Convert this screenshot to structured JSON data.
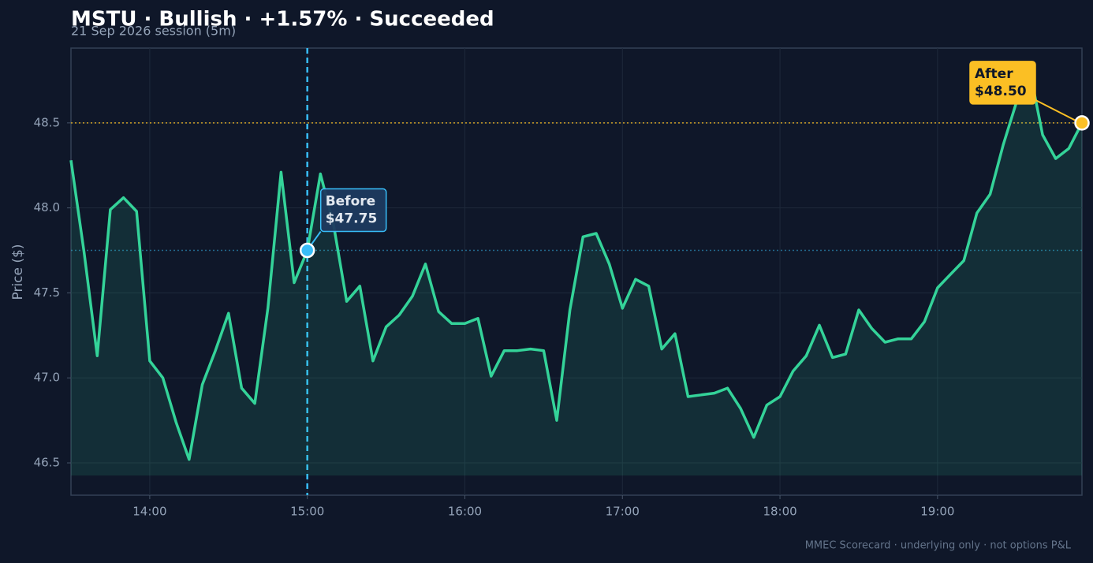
{
  "chart_data": {
    "type": "line",
    "title": "MSTU · Bullish · +1.57% · Succeeded",
    "subtitle": "21 Sep 2026 session (5m)",
    "ylabel": "Price ($)",
    "footer": "MMEC Scorecard · underlying only · not options P&L",
    "color": "#34d399",
    "grid": true,
    "x": [
      "13:30",
      "13:35",
      "13:40",
      "13:45",
      "13:50",
      "13:55",
      "14:00",
      "14:05",
      "14:10",
      "14:15",
      "14:20",
      "14:25",
      "14:30",
      "14:35",
      "14:40",
      "14:45",
      "14:50",
      "14:55",
      "15:00",
      "15:05",
      "15:10",
      "15:15",
      "15:20",
      "15:25",
      "15:30",
      "15:35",
      "15:40",
      "15:45",
      "15:50",
      "15:55",
      "16:00",
      "16:05",
      "16:10",
      "16:15",
      "16:20",
      "16:25",
      "16:30",
      "16:35",
      "16:40",
      "16:45",
      "16:50",
      "16:55",
      "17:00",
      "17:05",
      "17:10",
      "17:15",
      "17:20",
      "17:25",
      "17:30",
      "17:35",
      "17:40",
      "17:45",
      "17:50",
      "17:55",
      "18:00",
      "18:05",
      "18:10",
      "18:15",
      "18:20",
      "18:25",
      "18:30",
      "18:35",
      "18:40",
      "18:45",
      "18:50",
      "18:55",
      "19:00",
      "19:05",
      "19:10",
      "19:15",
      "19:20",
      "19:25",
      "19:30",
      "19:35",
      "19:40",
      "19:45",
      "19:50",
      "19:55"
    ],
    "values": [
      48.28,
      47.74,
      47.13,
      47.99,
      48.06,
      47.98,
      47.1,
      47.0,
      46.74,
      46.52,
      46.96,
      47.16,
      47.38,
      46.94,
      46.85,
      47.41,
      48.21,
      47.56,
      47.75,
      48.2,
      47.9,
      47.45,
      47.54,
      47.1,
      47.3,
      47.37,
      47.48,
      47.67,
      47.39,
      47.32,
      47.32,
      47.35,
      47.01,
      47.16,
      47.16,
      47.17,
      47.16,
      46.75,
      47.4,
      47.83,
      47.85,
      47.67,
      47.41,
      47.58,
      47.54,
      47.17,
      47.26,
      46.89,
      46.9,
      46.91,
      46.94,
      46.82,
      46.65,
      46.84,
      46.89,
      47.04,
      47.13,
      47.31,
      47.12,
      47.14,
      47.4,
      47.29,
      47.21,
      47.23,
      47.23,
      47.33,
      47.53,
      47.61,
      47.69,
      47.97,
      48.08,
      48.37,
      48.62,
      48.82,
      48.43,
      48.29,
      48.35,
      48.5
    ],
    "xlim": [
      "13:30",
      "19:55"
    ],
    "xticks": [
      "14:00",
      "15:00",
      "16:00",
      "17:00",
      "18:00",
      "19:00"
    ],
    "ylim": [
      46.31,
      48.94
    ],
    "yticks": [
      46.5,
      {
        "value": 47,
        "label": "47.0"
      },
      47.5,
      {
        "value": 48,
        "label": "48.0"
      },
      48.5
    ],
    "annotations": [
      {
        "label": "Before",
        "x": "15:00",
        "value": 47.75,
        "value_label": "$47.75",
        "color": "#38bdf8"
      },
      {
        "label": "After",
        "x": "19:55",
        "value": 48.5,
        "value_label": "$48.50",
        "color": "#fbbf24"
      }
    ]
  }
}
